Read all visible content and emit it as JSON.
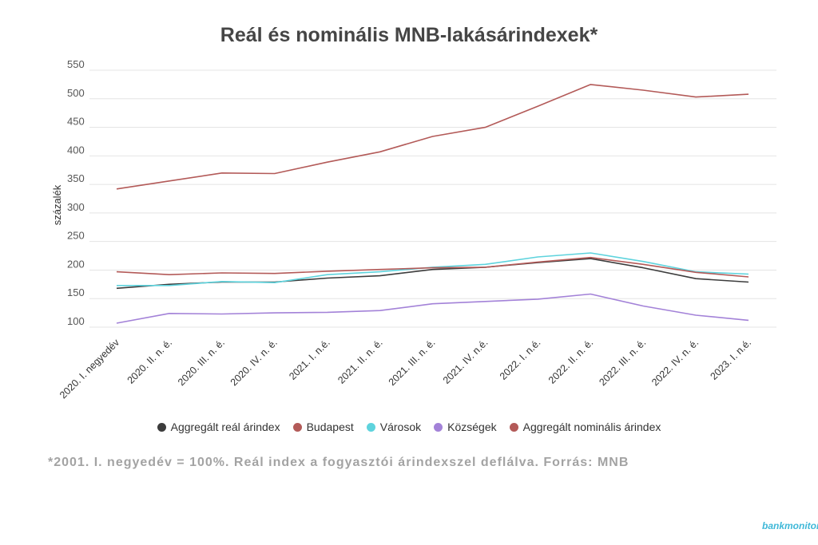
{
  "chart_data": {
    "type": "line",
    "title": "Reál és nominális MNB-lakásárindexek*",
    "ylabel": "százalék",
    "ylim": [
      90,
      560
    ],
    "yticks": [
      100,
      150,
      200,
      250,
      300,
      350,
      400,
      450,
      500,
      550
    ],
    "grid": true,
    "legend_position": "bottom",
    "categories": [
      "2020. I. negyedév",
      "2020. II. n. é.",
      "2020. III. n. é.",
      "2020. IV. n. é.",
      "2021. I. n.é.",
      "2021. II. n. é.",
      "2021. III. n. é.",
      "2021. IV. n.é.",
      "2022. I. n.é.",
      "2022. II. n. é.",
      "2022. III. n. é.",
      "2022. IV. n. é.",
      "2023. I. n.é."
    ],
    "series": [
      {
        "name": "Aggregált reál árindex",
        "color": "#3c3c3c",
        "values": [
          168,
          175,
          179,
          179,
          186,
          190,
          201,
          205,
          213,
          220,
          204,
          185,
          179
        ]
      },
      {
        "name": "Budapest",
        "color": "#b35a58",
        "values": [
          342,
          356,
          370,
          369,
          389,
          407,
          434,
          450,
          487,
          525,
          515,
          503,
          508
        ]
      },
      {
        "name": "Városok",
        "color": "#5ed3dd",
        "values": [
          173,
          173,
          180,
          178,
          192,
          197,
          205,
          210,
          223,
          230,
          215,
          197,
          193
        ]
      },
      {
        "name": "Községek",
        "color": "#a382d8",
        "values": [
          107,
          124,
          123,
          125,
          126,
          129,
          141,
          145,
          149,
          158,
          137,
          121,
          112
        ]
      },
      {
        "name": "Aggregált nominális árindex",
        "color": "#b35a58",
        "values": [
          197,
          192,
          195,
          194,
          198,
          201,
          204,
          205,
          214,
          222,
          210,
          196,
          188
        ]
      }
    ]
  },
  "footnote": "*2001. I. negyedév = 100%. Reál index a fogyasztói árindexszel deflálva. Forrás: MNB",
  "logo": "bankmonitor.hu"
}
